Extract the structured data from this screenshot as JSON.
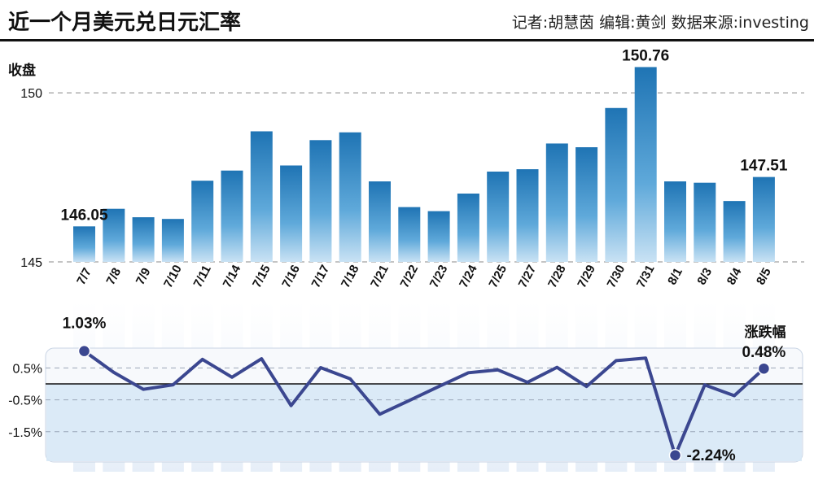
{
  "header": {
    "title": "近一个月美元兑日元汇率",
    "credit": "记者:胡慧茵  编辑:黄剑  数据来源:investing"
  },
  "chart_data": [
    {
      "type": "bar",
      "ylabel": "收盘",
      "yticks": [
        145,
        150
      ],
      "ylim": [
        145,
        151.3
      ],
      "color": "#2a86c4",
      "categories": [
        "7/7",
        "7/8",
        "7/9",
        "7/10",
        "7/11",
        "7/14",
        "7/15",
        "7/16",
        "7/17",
        "7/18",
        "7/21",
        "7/22",
        "7/23",
        "7/24",
        "7/25",
        "7/27",
        "7/28",
        "7/29",
        "7/30",
        "7/31",
        "8/1",
        "8/3",
        "8/4",
        "8/5"
      ],
      "values": [
        146.05,
        146.57,
        146.32,
        146.27,
        147.4,
        147.7,
        148.86,
        147.85,
        148.6,
        148.83,
        147.38,
        146.62,
        146.5,
        147.02,
        147.67,
        147.74,
        148.5,
        148.39,
        149.55,
        150.76,
        147.38,
        147.34,
        146.8,
        147.51
      ],
      "annotations": [
        {
          "index": 0,
          "text": "146.05"
        },
        {
          "index": 19,
          "text": "150.76"
        },
        {
          "index": 23,
          "text": "147.51"
        }
      ]
    },
    {
      "type": "line",
      "ylabel": "涨跌幅",
      "yticks": [
        0.5,
        -0.5,
        -1.5
      ],
      "ytick_labels": [
        "0.5%",
        "-0.5%",
        "-1.5%"
      ],
      "ylim": [
        -2.5,
        1.2
      ],
      "color": "#3b4790",
      "categories": [
        "7/7",
        "7/8",
        "7/9",
        "7/10",
        "7/11",
        "7/14",
        "7/15",
        "7/16",
        "7/17",
        "7/18",
        "7/21",
        "7/22",
        "7/23",
        "7/24",
        "7/25",
        "7/27",
        "7/28",
        "7/29",
        "7/30",
        "7/31",
        "8/1",
        "8/3",
        "8/4",
        "8/5"
      ],
      "values": [
        1.03,
        0.36,
        -0.17,
        -0.03,
        0.77,
        0.21,
        0.79,
        -0.68,
        0.51,
        0.16,
        -0.95,
        -0.52,
        -0.08,
        0.35,
        0.44,
        0.05,
        0.52,
        -0.08,
        0.73,
        0.81,
        -2.24,
        -0.03,
        -0.37,
        0.48
      ],
      "annotations": [
        {
          "index": 0,
          "text": "1.03%"
        },
        {
          "index": 20,
          "text": "-2.24%"
        },
        {
          "index": 23,
          "text": "0.48%"
        }
      ]
    }
  ]
}
